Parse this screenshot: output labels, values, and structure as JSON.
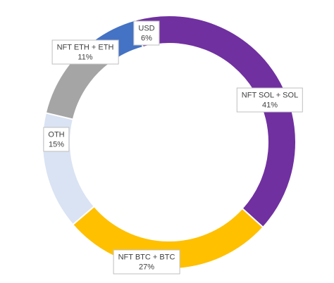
{
  "chart_data": {
    "type": "pie",
    "variant": "donut",
    "title": "",
    "legend": "none",
    "slices": [
      {
        "label": "USD",
        "value": 6,
        "display": "6%",
        "color": "#4472C4"
      },
      {
        "label": "NFT SOL + SOL",
        "value": 41,
        "display": "41%",
        "color": "#7030A0"
      },
      {
        "label": "NFT BTC + BTC",
        "value": 27,
        "display": "27%",
        "color": "#FFC000"
      },
      {
        "label": "OTH",
        "value": 15,
        "display": "15%",
        "color": "#DAE3F3"
      },
      {
        "label": "NFT ETH + ETH",
        "value": 11,
        "display": "11%",
        "color": "#A5A5A5"
      }
    ]
  }
}
